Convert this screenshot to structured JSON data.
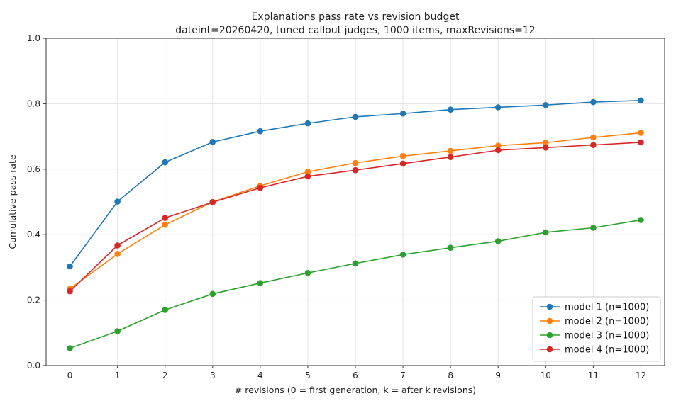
{
  "chart_data": {
    "type": "line",
    "title": "Explanations pass rate vs revision budget",
    "subtitle": "dateint=20260420, tuned callout judges, 1000 items, maxRevisions=12",
    "xlabel": "# revisions (0 = first generation, k = after k revisions)",
    "ylabel": "Cumulative pass rate",
    "x": [
      0,
      1,
      2,
      3,
      4,
      5,
      6,
      7,
      8,
      9,
      10,
      11,
      12
    ],
    "xlim": [
      -0.5,
      12.5
    ],
    "ylim": [
      0.0,
      1.0
    ],
    "yticks": [
      0.0,
      0.2,
      0.4,
      0.6,
      0.8,
      1.0
    ],
    "ytick_labels": [
      "0.0",
      "0.2",
      "0.4",
      "0.6",
      "0.8",
      "1.0"
    ],
    "grid": true,
    "legend_position": "bottom-right",
    "series": [
      {
        "name": "model 1 (n=1000)",
        "color": "#1f77b4",
        "values": [
          0.303,
          0.501,
          0.621,
          0.683,
          0.716,
          0.74,
          0.76,
          0.77,
          0.782,
          0.789,
          0.796,
          0.805,
          0.81
        ]
      },
      {
        "name": "model 2 (n=1000)",
        "color": "#ff7f0e",
        "values": [
          0.234,
          0.341,
          0.43,
          0.5,
          0.549,
          0.592,
          0.619,
          0.64,
          0.656,
          0.672,
          0.681,
          0.697,
          0.711
        ]
      },
      {
        "name": "model 3 (n=1000)",
        "color": "#2ca02c",
        "values": [
          0.053,
          0.105,
          0.17,
          0.219,
          0.252,
          0.283,
          0.312,
          0.339,
          0.36,
          0.38,
          0.407,
          0.421,
          0.445
        ]
      },
      {
        "name": "model 4 (n=1000)",
        "color": "#d62728",
        "values": [
          0.227,
          0.367,
          0.451,
          0.499,
          0.543,
          0.578,
          0.597,
          0.617,
          0.637,
          0.658,
          0.666,
          0.674,
          0.682
        ]
      }
    ]
  }
}
